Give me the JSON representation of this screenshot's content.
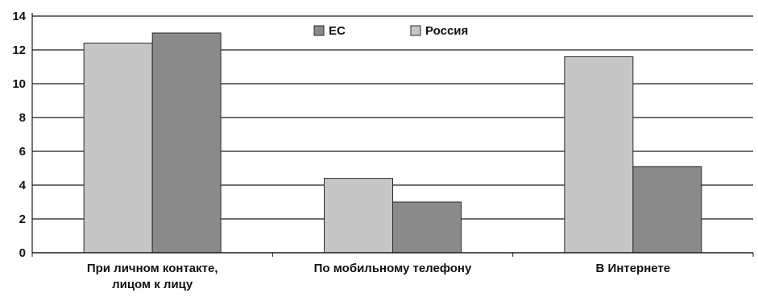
{
  "chart_data": {
    "type": "bar",
    "categories": [
      [
        "При личном контакте,",
        "лицом к лицу"
      ],
      [
        "По мобильному телефону"
      ],
      [
        "В Интернете"
      ]
    ],
    "series": [
      {
        "name": "Россия",
        "values": [
          12.4,
          4.4,
          11.6
        ],
        "color": "#c6c6c6"
      },
      {
        "name": "ЕС",
        "values": [
          13.0,
          3.0,
          5.1
        ],
        "color": "#8a8a8a"
      }
    ],
    "legend_order": [
      1,
      0
    ],
    "ylim": [
      0,
      14
    ],
    "yticks": [
      0,
      2,
      4,
      6,
      8,
      10,
      12,
      14
    ],
    "grid": true,
    "legend_position": "top-center",
    "title": "",
    "xlabel": "",
    "ylabel": ""
  }
}
